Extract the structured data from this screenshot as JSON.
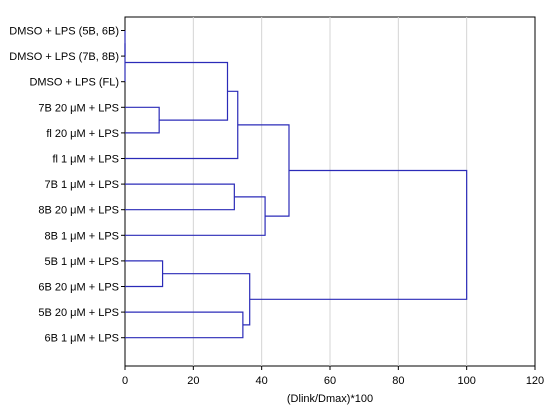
{
  "chart_data": {
    "type": "dendrogram",
    "orientation": "horizontal",
    "xlabel": "(Dlink/Dmax)*100",
    "xlim": [
      0,
      120
    ],
    "xticks": [
      0,
      20,
      40,
      60,
      80,
      100,
      120
    ],
    "grid": "vertical",
    "leaves": [
      "DMSO + LPS (5B, 6B)",
      "DMSO + LPS (7B, 8B)",
      "DMSO + LPS (FL)",
      "7B 20 μM + LPS",
      "fl 20 μM + LPS",
      "fl 1 μM + LPS",
      "7B 1 μM + LPS",
      "8B 20 μM + LPS",
      "8B 1 μM + LPS",
      "5B 1 μM + LPS",
      "6B 20 μM + LPS",
      "5B 20 μM + LPS",
      "6B 1 μM + LPS"
    ],
    "merges": [
      {
        "id": "n1",
        "left": "L0",
        "right": "L1",
        "height": 0
      },
      {
        "id": "n2",
        "left": "n1",
        "right": "L2",
        "height": 0
      },
      {
        "id": "n3",
        "left": "L3",
        "right": "L4",
        "height": 10
      },
      {
        "id": "n4",
        "left": "L9",
        "right": "L10",
        "height": 11
      },
      {
        "id": "n5",
        "left": "n2",
        "right": "n3",
        "height": 30
      },
      {
        "id": "n6",
        "left": "L6",
        "right": "L7",
        "height": 32
      },
      {
        "id": "n7",
        "left": "n5",
        "right": "L5",
        "height": 33
      },
      {
        "id": "n8",
        "left": "L11",
        "right": "L12",
        "height": 34.5
      },
      {
        "id": "n9",
        "left": "n4",
        "right": "n8",
        "height": 36.5
      },
      {
        "id": "n10",
        "left": "n6",
        "right": "L8",
        "height": 41
      },
      {
        "id": "n11",
        "left": "n7",
        "right": "n10",
        "height": 48
      },
      {
        "id": "n12",
        "left": "n11",
        "right": "n9",
        "height": 100
      }
    ],
    "line_color": "#2b2bb8"
  }
}
